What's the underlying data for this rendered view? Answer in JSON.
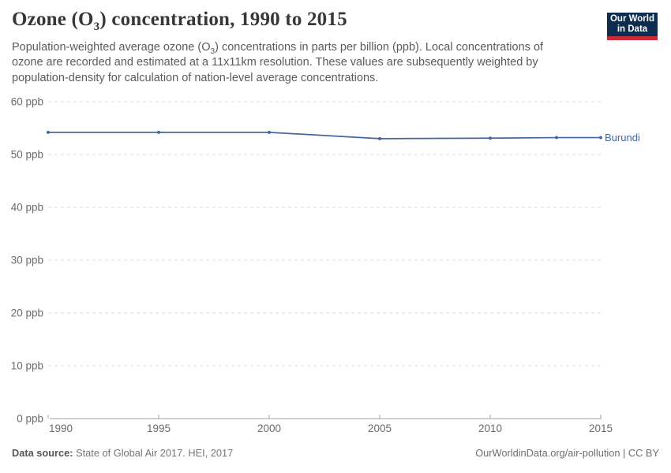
{
  "branding": {
    "logo_line1": "Our World",
    "logo_line2": "in Data",
    "navy": "#0d2d50",
    "red": "#cc2a36"
  },
  "header": {
    "title": {
      "pre": "Ozone (O",
      "sub": "3",
      "post": ") concentration, 1990 to 2015"
    },
    "subtitle": {
      "pre": "Population-weighted average ozone (O",
      "sub": "3",
      "post": ") concentrations in parts per billion (ppb). Local concentrations of ozone are recorded and estimated at a 11x11km resolution. These values are subsequently weighted by population-density for calculation of nation-level average concentrations."
    }
  },
  "footer": {
    "source_label": "Data source:",
    "source_value": " State of Global Air 2017. HEI, 2017",
    "credit": "OurWorldinData.org/air-pollution | CC BY"
  },
  "chart_data": {
    "type": "line",
    "title": "Ozone (O3) concentration, 1990 to 2015",
    "xlabel": "",
    "ylabel": "",
    "xlim": [
      1990,
      2015
    ],
    "ylim": [
      0,
      60
    ],
    "x_ticks": [
      1990,
      1995,
      2000,
      2005,
      2010,
      2015
    ],
    "y_ticks": [
      0,
      10,
      20,
      30,
      40,
      50,
      60
    ],
    "y_tick_suffix": " ppb",
    "grid": "horizontal-dashed",
    "legend_position": "line-end-label",
    "series": [
      {
        "name": "Burundi",
        "color": "#4666a0",
        "x": [
          1990,
          1995,
          2000,
          2005,
          2010,
          2013,
          2015
        ],
        "values": [
          54.2,
          54.2,
          54.2,
          53.0,
          53.1,
          53.2,
          53.2
        ]
      }
    ],
    "colors": {
      "gridline": "#dcdcdc",
      "axis_line": "#a3a3a3",
      "tick_text": "#6b6b6b"
    }
  }
}
